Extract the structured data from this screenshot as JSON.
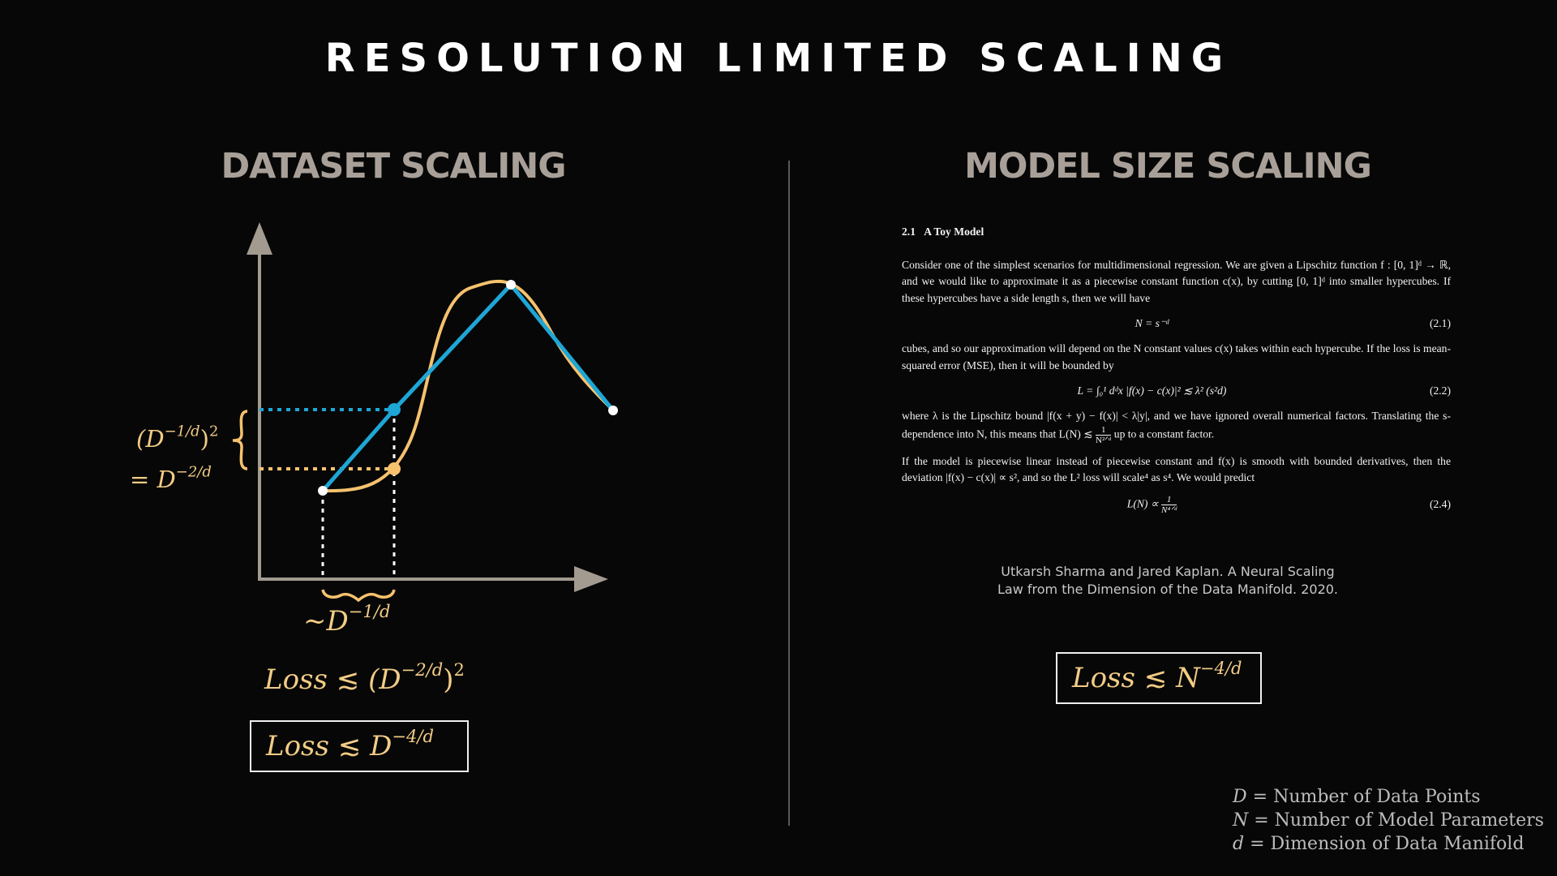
{
  "title": "RESOLUTION LIMITED SCALING",
  "left": {
    "title": "DATASET SCALING",
    "brace_label_line1_base": "(D",
    "brace_label_line1_exp": "−1/d",
    "brace_label_line1_tail": ")",
    "brace_label_line1_sq": "2",
    "brace_label_line2_eq": "=",
    "brace_label_line2_base": "D",
    "brace_label_line2_exp": "−2/d",
    "spacing_label_tilde": "∼",
    "spacing_label_base": "D",
    "spacing_label_exp": "−1/d",
    "loss_eq_lhs": "Loss",
    "loss_eq_rel": "≲",
    "loss_eq_base": "(D",
    "loss_eq_exp": "−2/d",
    "loss_eq_tail": ")",
    "loss_eq_sq": "2",
    "boxed_lhs": "Loss",
    "boxed_rel": "≲",
    "boxed_base": "D",
    "boxed_exp": "−4/d"
  },
  "right": {
    "title": "MODEL SIZE SCALING",
    "paper": {
      "heading_num": "2.1",
      "heading_text": "A Toy Model",
      "p1": "Consider one of the simplest scenarios for multidimensional regression. We are given a Lipschitz function f : [0, 1]ᵈ → ℝ, and we would like to approximate it as a piecewise constant function c(x), by cutting [0, 1]ᵈ into smaller hypercubes. If these hypercubes have a side length s, then we will have",
      "eq1": "N = s⁻ᵈ",
      "eq1_num": "(2.1)",
      "p2": "cubes, and so our approximation will depend on the N constant values c(x) takes within each hypercube. If the loss is mean-squared error (MSE), then it will be bounded by",
      "eq2": "L = ∫₀¹ dᵈx |f(x) − c(x)|² ≲ λ² (s²d)",
      "eq2_num": "(2.2)",
      "p3a": "where λ is the Lipschitz bound |f(x + y) − f(x)| < λ|y|, and we have ignored overall numerical factors. Translating the s-dependence into N, this means that L(N) ≲",
      "p3_frac_num": "1",
      "p3_frac_den": "N²ᐟᵈ",
      "p3b": "up to a constant factor.",
      "p4": "If the model is piecewise linear instead of piecewise constant and f(x) is smooth with bounded derivatives, then the deviation |f(x) − c(x)| ∝ s², and so the L² loss will scale⁴ as s⁴. We would predict",
      "eq4_lhs": "L(N) ∝",
      "eq4_frac_num": "1",
      "eq4_frac_den": "N⁴ᐟᵈ",
      "eq4_num": "(2.4)"
    },
    "citation_line1": "Utkarsh Sharma and Jared Kaplan. A Neural Scaling",
    "citation_line2": "Law from the Dimension of the Data Manifold. 2020.",
    "boxed_lhs": "Loss",
    "boxed_rel": "≲",
    "boxed_base": "N",
    "boxed_exp": "−4/d"
  },
  "legend": [
    {
      "var": "D",
      "text": "= Number of Data Points"
    },
    {
      "var": "N",
      "text": "= Number of Model Parameters"
    },
    {
      "var": "d",
      "text": "= Dimension of Data Manifold"
    }
  ],
  "colors": {
    "background": "#070707",
    "axis": "#a39a90",
    "curve": "#f6c26e",
    "approximation": "#1ea6d6",
    "highlight_text": "#f2cc86",
    "section_title": "#a8a098"
  },
  "icons": {
    "y_axis_arrow": "arrow-up-icon",
    "x_axis_arrow": "arrow-right-icon",
    "brace": "curly-brace-icon"
  }
}
